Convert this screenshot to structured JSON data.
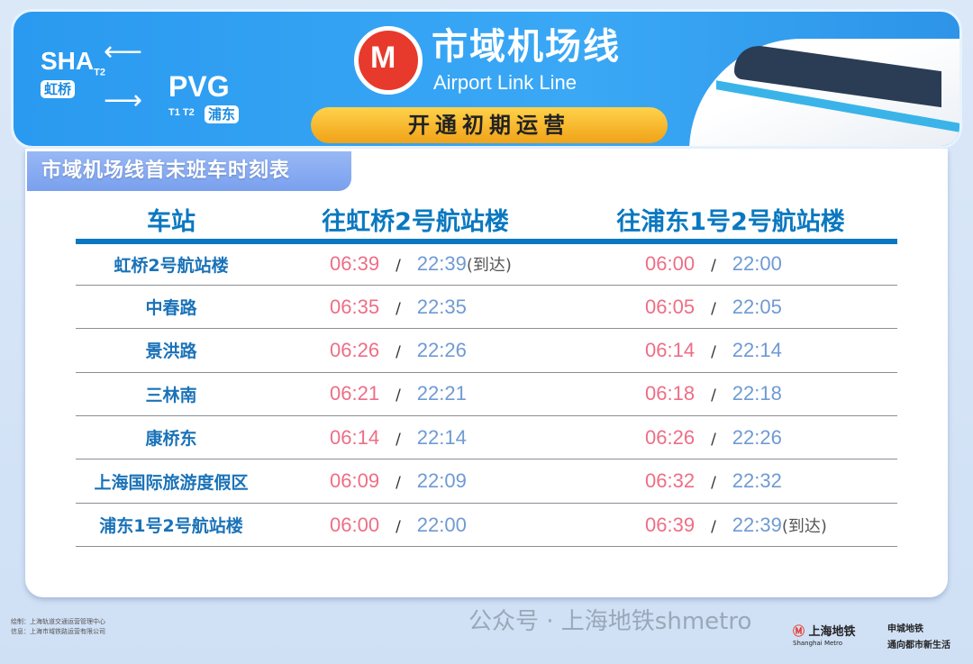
{
  "banner": {
    "sha": "SHA",
    "sha_term": "T2",
    "sha_cn": "虹桥",
    "pvg": "PVG",
    "pvg_term": "T1 T2",
    "pvg_cn": "浦东",
    "title_cn": "市域机场线",
    "title_en": "Airport Link Line",
    "status": "开通初期运营"
  },
  "subtitle": "市域机场线首末班车时刻表",
  "table": {
    "headers": [
      "车站",
      "往虹桥2号航站楼",
      "往浦东1号2号航站楼"
    ],
    "rows": [
      {
        "station": "虹桥2号航站楼",
        "to_hq_first": "06:39",
        "to_hq_last": "22:39",
        "to_hq_note": "(到达)",
        "to_pd_first": "06:00",
        "to_pd_last": "22:00",
        "to_pd_note": ""
      },
      {
        "station": "中春路",
        "to_hq_first": "06:35",
        "to_hq_last": "22:35",
        "to_hq_note": "",
        "to_pd_first": "06:05",
        "to_pd_last": "22:05",
        "to_pd_note": ""
      },
      {
        "station": "景洪路",
        "to_hq_first": "06:26",
        "to_hq_last": "22:26",
        "to_hq_note": "",
        "to_pd_first": "06:14",
        "to_pd_last": "22:14",
        "to_pd_note": ""
      },
      {
        "station": "三林南",
        "to_hq_first": "06:21",
        "to_hq_last": "22:21",
        "to_hq_note": "",
        "to_pd_first": "06:18",
        "to_pd_last": "22:18",
        "to_pd_note": ""
      },
      {
        "station": "康桥东",
        "to_hq_first": "06:14",
        "to_hq_last": "22:14",
        "to_hq_note": "",
        "to_pd_first": "06:26",
        "to_pd_last": "22:26",
        "to_pd_note": ""
      },
      {
        "station": "上海国际旅游度假区",
        "to_hq_first": "06:09",
        "to_hq_last": "22:09",
        "to_hq_note": "",
        "to_pd_first": "06:32",
        "to_pd_last": "22:32",
        "to_pd_note": ""
      },
      {
        "station": "浦东1号2号航站楼",
        "to_hq_first": "06:00",
        "to_hq_last": "22:00",
        "to_hq_note": "",
        "to_pd_first": "06:39",
        "to_pd_last": "22:39",
        "to_pd_note": "(到达)"
      }
    ],
    "separator": "/"
  },
  "footer": {
    "credit1": "绘制：上海轨道交通运营管理中心",
    "credit2": "信息：上海市域铁路运营有限公司",
    "watermark": "公众号 · 上海地铁shmetro",
    "brand": "上海地铁",
    "brand_en": "Shanghai Metro",
    "slogan1": "申城地铁",
    "slogan2": "通向都市新生活"
  },
  "colors": {
    "banner": "#2a9af0",
    "header_text": "#0a78c0",
    "first_train": "#ee6e86",
    "last_train": "#6f9ad4",
    "status_pill": "#f5b52a",
    "logo_red": "#e73a2c"
  }
}
